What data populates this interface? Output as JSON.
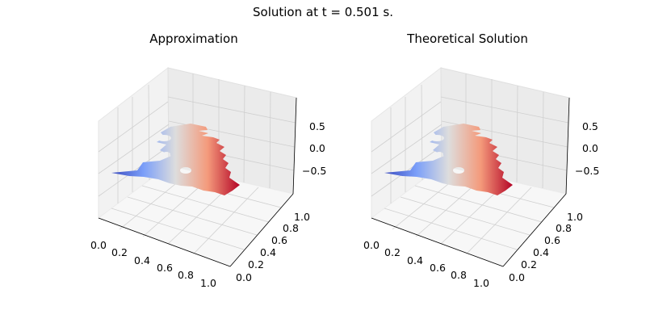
{
  "figure": {
    "suptitle": "Solution at t = 0.501 s."
  },
  "colors": {
    "background": "#ffffff",
    "pane_x": "#f2f2f2",
    "pane_y": "#ebebeb",
    "pane_floor": "#f7f7f7",
    "grid": "#cfcfcf",
    "axis_line": "#000000"
  },
  "chart_data": [
    {
      "type": "surface",
      "title": "Approximation",
      "colormap": "coolwarm",
      "x_ticks": [
        "0.0",
        "0.2",
        "0.4",
        "0.6",
        "0.8",
        "1.0"
      ],
      "y_ticks": [
        "0.0",
        "0.2",
        "0.4",
        "0.6",
        "0.8",
        "1.0"
      ],
      "z_ticks": [
        "−0.5",
        "0.0",
        "0.5"
      ],
      "xlim": [
        0,
        1
      ],
      "ylim": [
        0,
        1
      ],
      "zlim": [
        -0.9,
        0.9
      ],
      "grid": true
    },
    {
      "type": "surface",
      "title": "Theoretical Solution",
      "colormap": "coolwarm",
      "x_ticks": [
        "0.0",
        "0.2",
        "0.4",
        "0.6",
        "0.8",
        "1.0"
      ],
      "y_ticks": [
        "0.0",
        "0.2",
        "0.4",
        "0.6",
        "0.8",
        "1.0"
      ],
      "z_ticks": [
        "−0.5",
        "0.0",
        "0.5"
      ],
      "xlim": [
        0,
        1
      ],
      "ylim": [
        0,
        1
      ],
      "zlim": [
        -0.9,
        0.9
      ],
      "grid": true
    }
  ]
}
